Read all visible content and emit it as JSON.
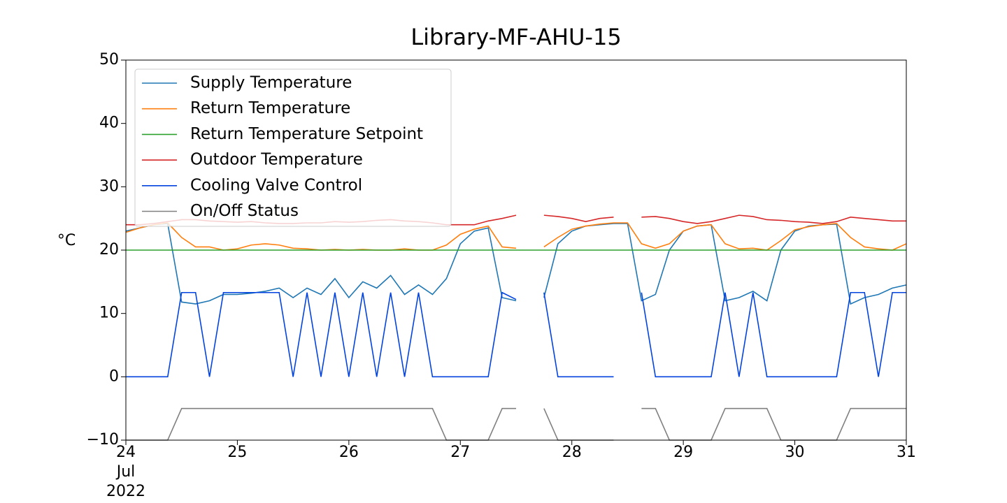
{
  "chart_data": {
    "type": "line",
    "title": "Library-MF-AHU-15",
    "ylabel": "°C",
    "xlim": [
      24,
      31
    ],
    "xticks": [
      {
        "value": 24,
        "label": "24\nJul\n2022"
      },
      25,
      26,
      27,
      28,
      29,
      30,
      31
    ],
    "ylim": [
      -10,
      50
    ],
    "yticks": [
      {
        "value": -10,
        "label": "−10"
      },
      0,
      10,
      20,
      30,
      40,
      50
    ],
    "legend": "upper left",
    "grid": false,
    "x": [
      24.0,
      24.125,
      24.25,
      24.375,
      24.5,
      24.625,
      24.75,
      24.875,
      25.0,
      25.125,
      25.25,
      25.375,
      25.5,
      25.625,
      25.75,
      25.875,
      26.0,
      26.125,
      26.25,
      26.375,
      26.5,
      26.625,
      26.75,
      26.875,
      27.0,
      27.125,
      27.25,
      27.375,
      27.5,
      27.625,
      27.75,
      27.875,
      28.0,
      28.125,
      28.25,
      28.375,
      28.5,
      28.625,
      28.75,
      28.875,
      29.0,
      29.125,
      29.25,
      29.375,
      29.5,
      29.625,
      29.75,
      29.875,
      30.0,
      30.125,
      30.25,
      30.375,
      30.5,
      30.625,
      30.75,
      30.875,
      31.0
    ],
    "series": [
      {
        "name": "Supply Temperature",
        "color": "#1f77b4",
        "values": [
          23,
          23.5,
          24,
          24.2,
          11.8,
          11.5,
          12,
          13,
          13,
          13.2,
          13.5,
          14,
          12.5,
          14,
          13,
          15.5,
          12.5,
          15,
          14,
          16,
          13,
          14.5,
          13,
          15.5,
          21,
          23,
          23.5,
          12.5,
          12,
          null,
          12.5,
          21,
          23,
          23.8,
          24,
          24.2,
          24.2,
          12,
          13,
          20,
          23,
          23.8,
          24,
          12,
          12.5,
          13.5,
          12,
          20,
          23,
          23.8,
          24,
          24.1,
          11.5,
          12.5,
          13,
          14,
          14.5
        ]
      },
      {
        "name": "Return Temperature",
        "color": "#ff7f0e",
        "values": [
          22.8,
          23.5,
          24,
          24.3,
          22,
          20.5,
          20.5,
          20,
          20.2,
          20.8,
          21,
          20.8,
          20.3,
          20.2,
          20,
          20.1,
          20,
          20.1,
          20,
          20,
          20.2,
          20,
          20,
          20.8,
          22.5,
          23.3,
          23.8,
          20.5,
          20.3,
          null,
          20.5,
          22,
          23.3,
          23.8,
          24.1,
          24.3,
          24.3,
          21,
          20.3,
          21,
          23,
          23.8,
          24,
          21,
          20.2,
          20.3,
          20,
          21.5,
          23.2,
          23.7,
          24,
          24.2,
          22,
          20.5,
          20.2,
          20,
          21
        ]
      },
      {
        "name": "Return Temperature Setpoint",
        "color": "#2ca02c",
        "values": [
          20,
          20,
          20,
          20,
          20,
          20,
          20,
          20,
          20,
          20,
          20,
          20,
          20,
          20,
          20,
          20,
          20,
          20,
          20,
          20,
          20,
          20,
          20,
          20,
          20,
          20,
          20,
          20,
          20,
          20,
          20,
          20,
          20,
          20,
          20,
          20,
          20,
          20,
          20,
          20,
          20,
          20,
          20,
          20,
          20,
          20,
          20,
          20,
          20,
          20,
          20,
          20,
          20,
          20,
          20,
          20,
          20
        ]
      },
      {
        "name": "Outdoor Temperature",
        "color": "#d62728",
        "values": [
          24,
          24,
          24.2,
          24.5,
          24.8,
          24.8,
          24.6,
          24.5,
          24.4,
          24.5,
          24.3,
          24.2,
          24.2,
          24.3,
          24.3,
          24.5,
          24.4,
          24.5,
          24.7,
          24.8,
          24.6,
          24.5,
          24.3,
          24,
          24,
          24,
          24.6,
          25,
          25.5,
          null,
          25.5,
          25.3,
          25,
          24.5,
          25,
          25.2,
          null,
          25.2,
          25.3,
          25,
          24.5,
          24.2,
          24.5,
          25,
          25.5,
          25.3,
          24.8,
          24.7,
          24.5,
          24.4,
          24.2,
          24.5,
          25.2,
          25,
          24.8,
          24.6,
          24.6
        ]
      },
      {
        "name": "Cooling Valve Control",
        "color": "#0343df",
        "values": [
          0,
          0,
          0,
          0,
          13.3,
          13.3,
          0,
          13.3,
          13.3,
          13.3,
          13.3,
          13.3,
          0,
          13.3,
          0,
          13.3,
          0,
          13.3,
          0,
          13.3,
          0,
          13.3,
          0,
          0,
          0,
          0,
          0,
          13.3,
          12.2,
          null,
          13.3,
          0,
          0,
          0,
          0,
          0,
          null,
          13.3,
          0,
          0,
          0,
          0,
          0,
          13.3,
          0,
          13.3,
          0,
          0,
          0,
          0,
          0,
          0,
          13.3,
          13.3,
          0,
          13.3,
          13.3
        ]
      },
      {
        "name": "On/Off Status",
        "color": "#808080",
        "values": [
          -10,
          -10,
          -10,
          -10,
          -5,
          -5,
          -5,
          -5,
          -5,
          -5,
          -5,
          -5,
          -5,
          -5,
          -5,
          -5,
          -5,
          -5,
          -5,
          -5,
          -5,
          -5,
          -5,
          -10,
          -10,
          -10,
          -10,
          -5,
          -5,
          null,
          -5,
          -10,
          -10,
          -10,
          -10,
          -10,
          null,
          -5,
          -5,
          -10,
          -10,
          -10,
          -10,
          -5,
          -5,
          -5,
          -5,
          -10,
          -10,
          -10,
          -10,
          -10,
          -5,
          -5,
          -5,
          -5,
          -5
        ]
      }
    ]
  }
}
